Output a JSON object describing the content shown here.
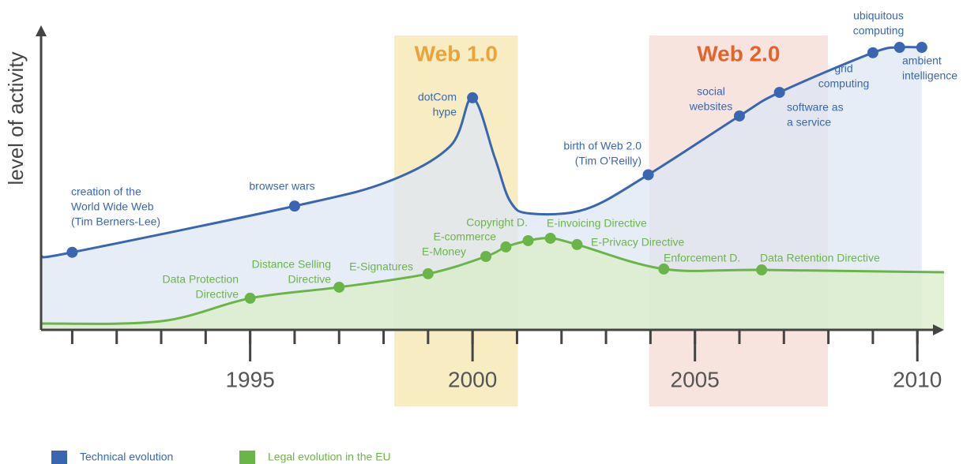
{
  "chart_data": {
    "type": "line",
    "ylabel": "level of activity",
    "xlim": [
      1990.3,
      2010.6
    ],
    "ylim": [
      0,
      100
    ],
    "xticks": [
      1995,
      2000,
      2005,
      2010
    ],
    "xminorticks": [
      1991,
      1992,
      1993,
      1994,
      1995,
      1996,
      1997,
      1998,
      1999,
      2000,
      2001,
      2002,
      2003,
      2004,
      2005,
      2006,
      2007,
      2008,
      2009,
      2010
    ],
    "bands": [
      {
        "label": "Web 1.0",
        "range": [
          1998.24,
          2001.02
        ],
        "color": "#f8ecc2",
        "label_color": "#e9a43c"
      },
      {
        "label": "Web 2.0",
        "range": [
          2003.97,
          2007.99
        ],
        "color": "#f7e4df",
        "label_color": "#e2642c"
      }
    ],
    "series": [
      {
        "name": "Technical evolution",
        "color": "#3a66b1",
        "area_color": "#dde7f4",
        "x": [
          1990.3,
          1991.0,
          1996.0,
          1998.1,
          1999.5,
          2000.0,
          2000.5,
          2000.85,
          2001.3,
          2002.55,
          2003.95,
          2006.0,
          2006.9,
          2009.0,
          2009.6,
          2010.1
        ],
        "values": [
          24.6,
          26,
          41.5,
          49.7,
          61.6,
          77.8,
          57.7,
          43,
          39,
          40.5,
          52,
          71.7,
          79.6,
          92.9,
          94.7,
          94.7
        ],
        "events": [
          {
            "label": [
              "creation of the",
              "World Wide Web",
              "(Tim Berners-Lee)"
            ],
            "x": 1991.0,
            "value": 26
          },
          {
            "label": [
              "browser wars"
            ],
            "x": 1996.0,
            "value": 41.5
          },
          {
            "label": [
              "dotCom",
              "hype"
            ],
            "x": 2000.0,
            "value": 77.8
          },
          {
            "label": [
              "birth of  Web 2.0",
              "(Tim O’Reilly)"
            ],
            "x": 2003.95,
            "value": 52
          },
          {
            "label": [
              "social",
              "websites"
            ],
            "x": 2006.0,
            "value": 71.7
          },
          {
            "label": [
              "software as",
              "a service"
            ],
            "x": 2006.9,
            "value": 79.6
          },
          {
            "label": [
              "grid",
              "computing"
            ],
            "x": 2009.0,
            "value": 92.9
          },
          {
            "label": [
              "ubiquitous",
              "computing"
            ],
            "x": 2009.6,
            "value": 94.7
          },
          {
            "label": [
              "ambient",
              "intelligence"
            ],
            "x": 2010.1,
            "value": 94.7
          }
        ]
      },
      {
        "name": "Legal evolution in the EU",
        "color": "#6bb548",
        "area_color": "#d9edca",
        "x": [
          1990.3,
          1993.0,
          1995.0,
          1997.0,
          1999.0,
          2000.3,
          2000.75,
          2001.25,
          2001.75,
          2002.35,
          2004.3,
          2006.5,
          2010.6
        ],
        "values": [
          2.1,
          2.9,
          10.6,
          14.3,
          18.8,
          24.6,
          27.8,
          29.9,
          30.7,
          28.6,
          20.4,
          20.1,
          19.3
        ],
        "events": [
          {
            "label": [
              "Data Protection",
              "Directive"
            ],
            "x": 1995.0,
            "value": 10.6
          },
          {
            "label": [
              "Distance Selling",
              "Directive"
            ],
            "x": 1997.0,
            "value": 14.3
          },
          {
            "label": [
              "E-Signatures"
            ],
            "x": 1999.0,
            "value": 18.8
          },
          {
            "label": [
              "E-Money"
            ],
            "x": 2000.3,
            "value": 24.6
          },
          {
            "label": [
              "E-commerce"
            ],
            "x": 2000.75,
            "value": 27.8
          },
          {
            "label": [
              "Copyright D."
            ],
            "x": 2001.25,
            "value": 29.9
          },
          {
            "label": [
              "E-invoicing Directive"
            ],
            "x": 2001.75,
            "value": 30.7
          },
          {
            "label": [
              "E-Privacy Directive"
            ],
            "x": 2002.35,
            "value": 28.6
          },
          {
            "label": [
              "Enforcement D."
            ],
            "x": 2004.3,
            "value": 20.4
          },
          {
            "label": [
              "Data Retention Directive"
            ],
            "x": 2006.5,
            "value": 20.1
          }
        ]
      }
    ]
  }
}
